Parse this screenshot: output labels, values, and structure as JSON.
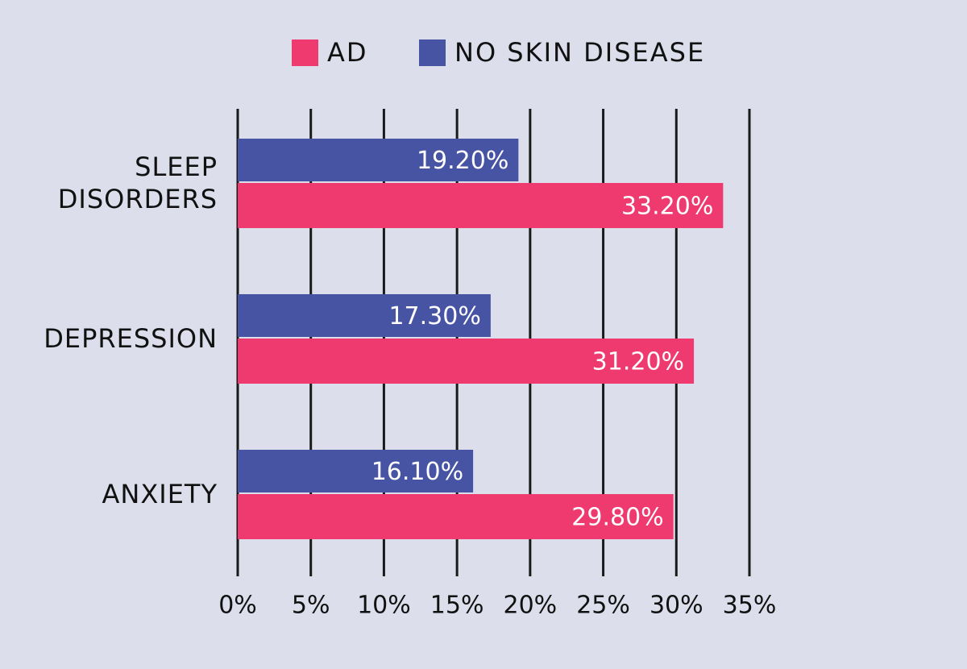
{
  "chart_data": {
    "type": "hbar",
    "categories": [
      "SLEEP DISORDERS",
      "DEPRESSION",
      "ANXIETY"
    ],
    "series": [
      {
        "name": "AD",
        "color": "#ee3a6e",
        "values": [
          33.2,
          31.2,
          29.8
        ],
        "value_labels": [
          "33.20%",
          "31.20%",
          "29.80%"
        ]
      },
      {
        "name": "NO SKIN DISEASE",
        "color": "#4753a3",
        "values": [
          19.2,
          17.3,
          16.1
        ],
        "value_labels": [
          "19.20%",
          "17.30%",
          "16.10%"
        ]
      }
    ],
    "xlim": [
      0,
      35
    ],
    "xticks": [
      {
        "value": 0,
        "label": "0%"
      },
      {
        "value": 5,
        "label": "5%"
      },
      {
        "value": 10,
        "label": "10%"
      },
      {
        "value": 15,
        "label": "15%"
      },
      {
        "value": 20,
        "label": "20%"
      },
      {
        "value": 25,
        "label": "25%"
      },
      {
        "value": 30,
        "label": "30%"
      },
      {
        "value": 35,
        "label": "35%"
      }
    ],
    "grid": true,
    "legend": "top"
  }
}
